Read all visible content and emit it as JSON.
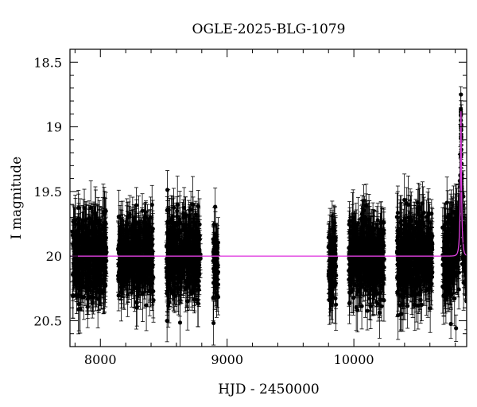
{
  "chart_data": {
    "type": "scatter",
    "title": "OGLE-2025-BLG-1079",
    "xlabel": "HJD - 2450000",
    "ylabel": "I magnitude",
    "xlim": [
      7760,
      10890
    ],
    "ylim": [
      20.7,
      18.4
    ],
    "y_inverted": true,
    "grid": false,
    "x_ticks": [
      8000,
      9000,
      10000
    ],
    "x_tick_labels": [
      "8000",
      "9000",
      "10000"
    ],
    "y_ticks": [
      18.5,
      19,
      19.5,
      20,
      20.5
    ],
    "y_tick_labels": [
      "18.5",
      "19",
      "19.5",
      "20",
      "20.5"
    ],
    "colors": {
      "points": "#000000",
      "model": "#e040e0"
    },
    "series": [
      {
        "kind": "photometry_points_with_errorbars",
        "observing_seasons": [
          {
            "hjd_range": [
              7780,
              8050
            ],
            "mag_center": 20.0,
            "mag_spread": 0.28,
            "err_typical": 0.16
          },
          {
            "hjd_range": [
              8140,
              8420
            ],
            "mag_center": 20.0,
            "mag_spread": 0.26,
            "err_typical": 0.16
          },
          {
            "hjd_range": [
              8520,
              8790
            ],
            "mag_center": 20.0,
            "mag_spread": 0.28,
            "err_typical": 0.16
          },
          {
            "hjd_range": [
              8890,
              8930
            ],
            "mag_center": 20.05,
            "mag_spread": 0.25,
            "err_typical": 0.15
          },
          {
            "hjd_range": [
              9800,
              9860
            ],
            "mag_center": 20.05,
            "mag_spread": 0.3,
            "err_typical": 0.17
          },
          {
            "hjd_range": [
              9960,
              10240
            ],
            "mag_center": 20.0,
            "mag_spread": 0.28,
            "err_typical": 0.16
          },
          {
            "hjd_range": [
              10340,
              10620
            ],
            "mag_center": 20.0,
            "mag_spread": 0.28,
            "err_typical": 0.16
          },
          {
            "hjd_range": [
              10700,
              10890
            ],
            "mag_center": 20.0,
            "mag_spread": 0.3,
            "err_typical": 0.17
          }
        ],
        "peak": {
          "hjd": 10845,
          "mag": 18.75
        }
      },
      {
        "kind": "model_curve",
        "baseline_mag": 20.0,
        "peak_hjd": 10845,
        "peak_mag": 18.88,
        "timescale_days": 6
      }
    ]
  }
}
